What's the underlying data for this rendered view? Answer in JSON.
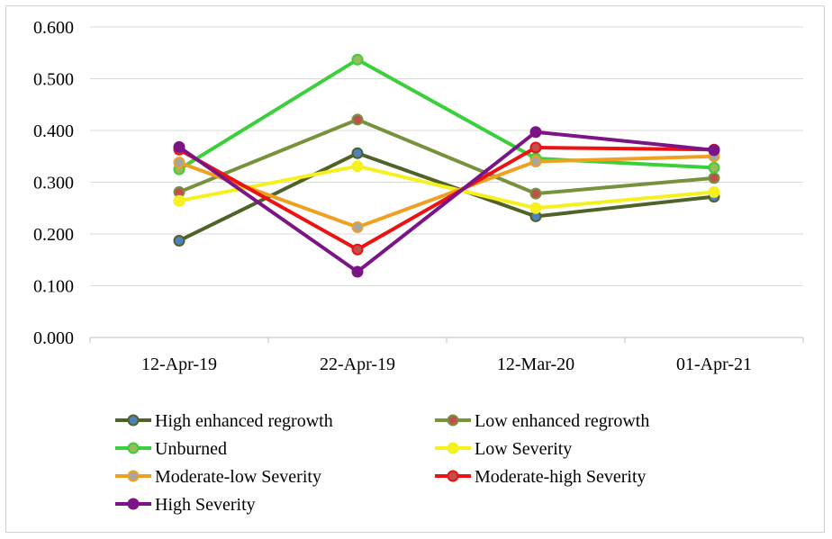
{
  "chart_data": {
    "type": "line",
    "title": "",
    "xlabel": "",
    "ylabel": "",
    "categories": [
      "12-Apr-19",
      "22-Apr-19",
      "12-Mar-20",
      "01-Apr-21"
    ],
    "ylim": [
      0,
      0.6
    ],
    "yticks": [
      "0.000",
      "0.100",
      "0.200",
      "0.300",
      "0.400",
      "0.500",
      "0.600"
    ],
    "grid": "horizontal",
    "legend_position": "bottom",
    "series": [
      {
        "name": "High enhanced regrowth",
        "color": "#4f6228",
        "marker": "#4f81bd",
        "values": [
          0.187,
          0.356,
          0.234,
          0.272
        ]
      },
      {
        "name": "Low enhanced regrowth",
        "color": "#76923c",
        "marker": "#c0504d",
        "values": [
          0.281,
          0.421,
          0.278,
          0.308
        ]
      },
      {
        "name": "Unburned",
        "color": "#3ccf3c",
        "marker": "#9bbb59",
        "values": [
          0.325,
          0.537,
          0.346,
          0.328
        ]
      },
      {
        "name": "Low Severity",
        "color": "#f5f01e",
        "marker": "#f5f01e",
        "values": [
          0.264,
          0.331,
          0.25,
          0.281
        ]
      },
      {
        "name": "Moderate-low Severity",
        "color": "#f0a020",
        "marker": "#a5a5a5",
        "values": [
          0.338,
          0.213,
          0.34,
          0.35
        ]
      },
      {
        "name": "Moderate-high Severity",
        "color": "#ee1111",
        "marker": "#c0504d",
        "values": [
          0.363,
          0.17,
          0.367,
          0.363
        ]
      },
      {
        "name": "High Severity",
        "color": "#7b1487",
        "marker": "#7b1487",
        "values": [
          0.368,
          0.127,
          0.397,
          0.362
        ]
      }
    ]
  }
}
